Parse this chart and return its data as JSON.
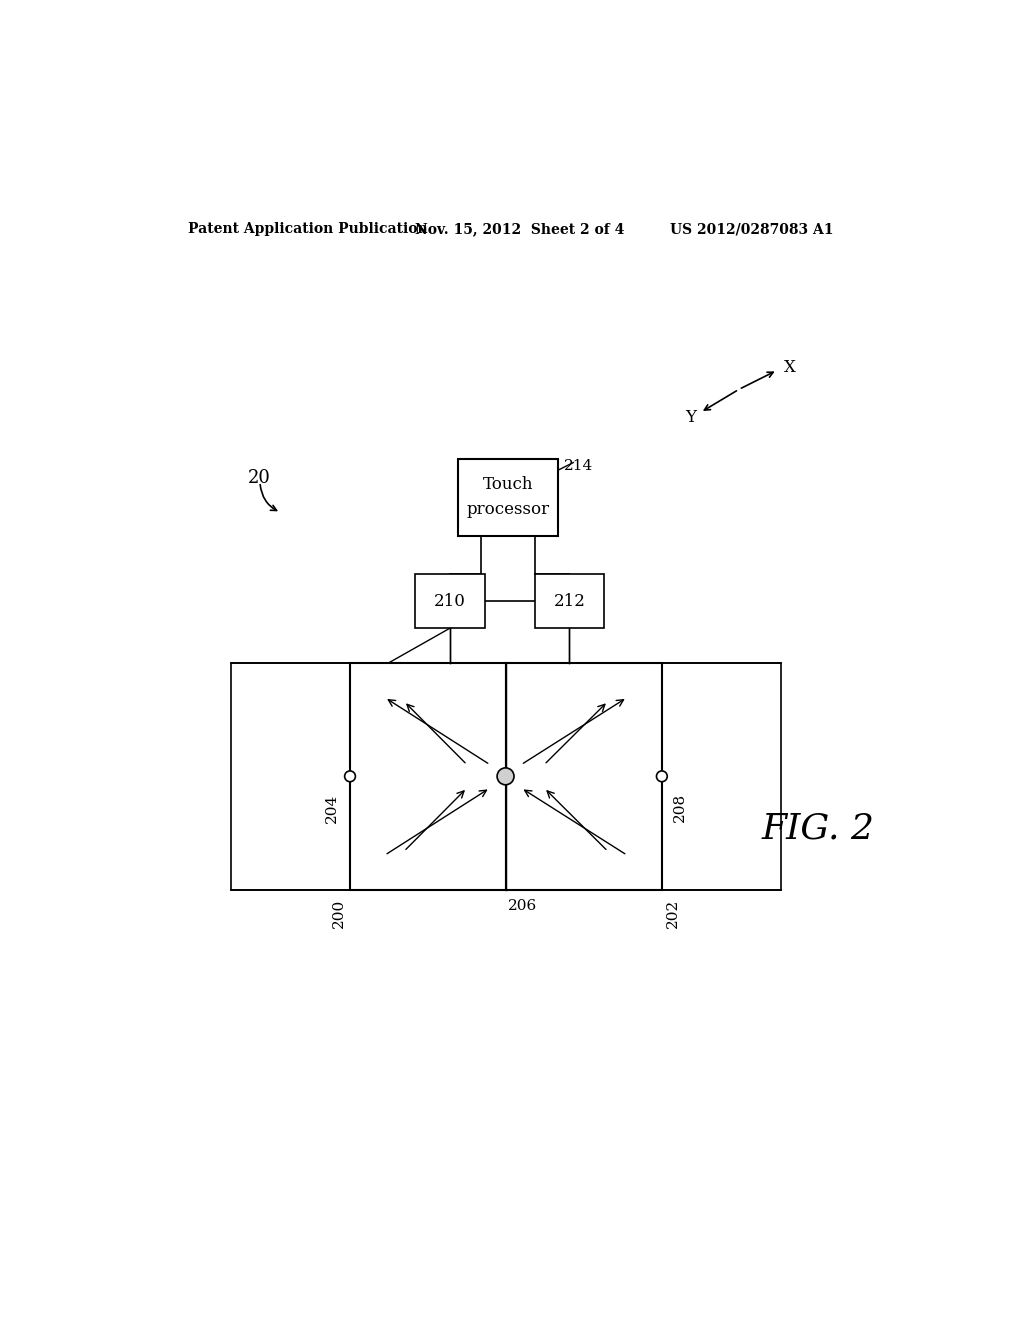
{
  "bg_color": "#ffffff",
  "header_left": "Patent Application Publication",
  "header_mid": "Nov. 15, 2012  Sheet 2 of 4",
  "header_right": "US 2012/0287083 A1",
  "fig_label": "FIG. 2",
  "ref_20": "20",
  "ref_200": "200",
  "ref_202": "202",
  "ref_204": "204",
  "ref_206": "206",
  "ref_208": "208",
  "ref_210": "210",
  "ref_212": "212",
  "ref_214": "214",
  "touch_processor_label": "Touch\nprocessor",
  "axis_x_label": "X",
  "axis_y_label": "Y"
}
